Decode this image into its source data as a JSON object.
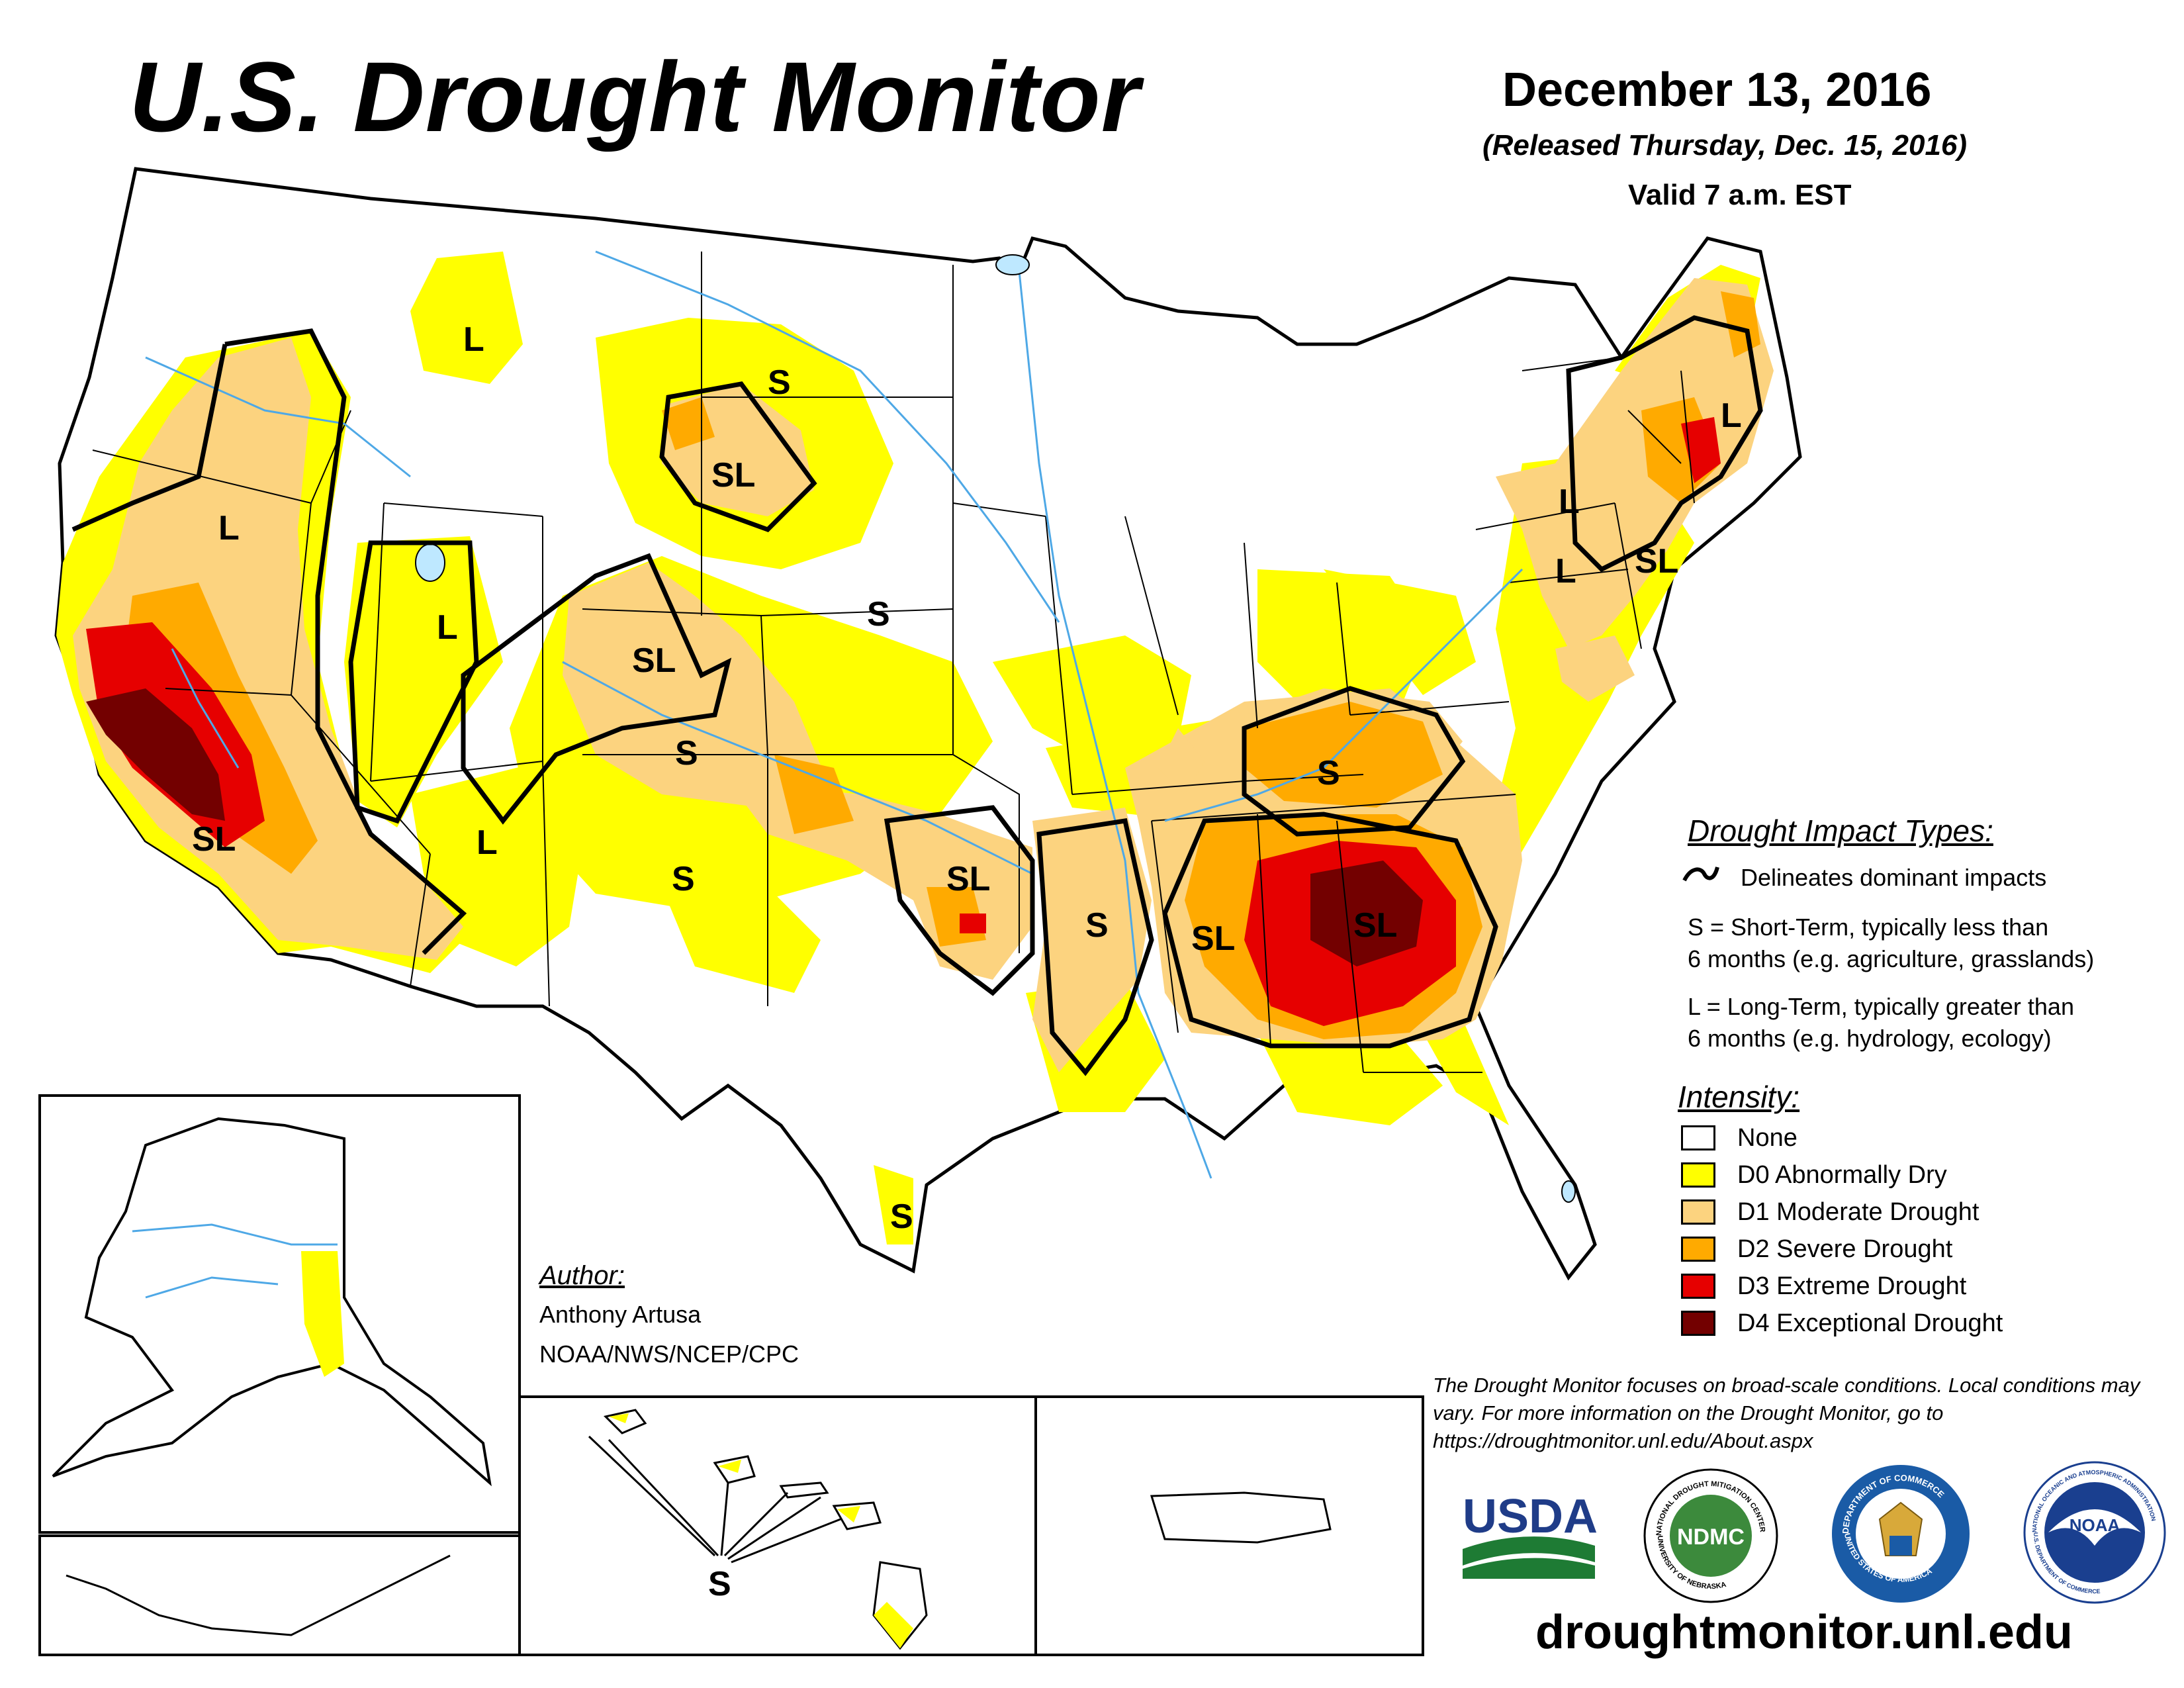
{
  "header": {
    "title": "U.S. Drought Monitor",
    "date": "December 13, 2016",
    "released": "(Released Thursday, Dec. 15, 2016)",
    "valid": "Valid 7 a.m. EST"
  },
  "colors": {
    "none": "#ffffff",
    "d0": "#ffff00",
    "d1": "#fcd37f",
    "d2": "#ffaa00",
    "d3": "#e60000",
    "d4": "#730000",
    "water": "#bee8ff",
    "river": "#4ea8e6"
  },
  "map_labels": {
    "l1": "L",
    "l2": "L",
    "l3": "L",
    "l4": "L",
    "l5": "L",
    "l6": "L",
    "l7": "L",
    "s1": "S",
    "s2": "S",
    "s3": "S",
    "s4": "S",
    "s5": "S",
    "s6": "S",
    "s7": "S",
    "s8": "S",
    "sl1": "SL",
    "sl2": "SL",
    "sl3": "SL",
    "sl4": "SL",
    "sl5": "SL",
    "sl6": "SL",
    "sl7": "SL"
  },
  "impact_legend": {
    "heading": "Drought Impact Types:",
    "delineates": "Delineates dominant impacts",
    "s_line1": "S = Short-Term, typically less than",
    "s_line2": "6 months (e.g. agriculture, grasslands)",
    "l_line1": "L = Long-Term, typically greater than",
    "l_line2": "6 months (e.g. hydrology, ecology)"
  },
  "intensity_legend": {
    "heading": "Intensity:",
    "items": [
      {
        "label": "None",
        "color": "#ffffff"
      },
      {
        "label": "D0 Abnormally Dry",
        "color": "#ffff00"
      },
      {
        "label": "D1 Moderate Drought",
        "color": "#fcd37f"
      },
      {
        "label": "D2 Severe Drought",
        "color": "#ffaa00"
      },
      {
        "label": "D3 Extreme Drought",
        "color": "#e60000"
      },
      {
        "label": "D4 Exceptional Drought",
        "color": "#730000"
      }
    ]
  },
  "author": {
    "heading": "Author:",
    "name": "Anthony Artusa",
    "org": "NOAA/NWS/NCEP/CPC"
  },
  "disclaimer": "The Drought Monitor focuses on broad-scale conditions. Local conditions may vary. For more information on the Drought Monitor, go to https://droughtmonitor.unl.edu/About.aspx",
  "logos": {
    "usda": "USDA",
    "ndmc": "NDMC",
    "ndmc_ring_top": "NATIONAL DROUGHT MITIGATION CENTER",
    "ndmc_ring_bottom": "UNIVERSITY OF NEBRASKA",
    "doc_ring": "DEPARTMENT OF COMMERCE",
    "doc_ring_bottom": "UNITED STATES OF AMERICA",
    "noaa": "NOAA",
    "noaa_ring": "NATIONAL OCEANIC AND ATMOSPHERIC ADMINISTRATION",
    "noaa_ring_bottom": "U.S. DEPARTMENT OF COMMERCE"
  },
  "website": "droughtmonitor.unl.edu"
}
